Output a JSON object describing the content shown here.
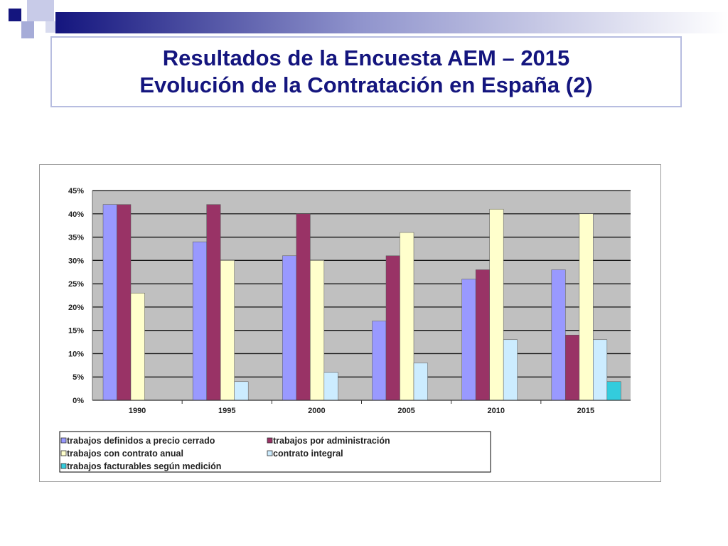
{
  "slide": {
    "title_line1": "Resultados de la Encuesta AEM – 2015",
    "title_line2": "Evolución de la Contratación en España (2)"
  },
  "colors": {
    "title": "#14157e",
    "plot_background": "#c0c0c0",
    "header_bar_gradient_start": "#14157e",
    "header_bar_gradient_end": "#ffffff"
  },
  "chart_data": {
    "type": "bar",
    "title": "",
    "xlabel": "",
    "ylabel": "",
    "categories": [
      "1990",
      "1995",
      "2000",
      "2005",
      "2010",
      "2015"
    ],
    "ylim": [
      0,
      45
    ],
    "yticks": [
      0,
      5,
      10,
      15,
      20,
      25,
      30,
      35,
      40,
      45
    ],
    "ytick_labels": [
      "0%",
      "5%",
      "10%",
      "15%",
      "20%",
      "25%",
      "30%",
      "35%",
      "40%",
      "45%"
    ],
    "grid": true,
    "legend_position": "bottom",
    "series": [
      {
        "name": "trabajos definidos  a precio cerrado",
        "color": "#9999ff",
        "values": [
          42,
          34,
          31,
          17,
          26,
          28
        ]
      },
      {
        "name": "trabajos por administración",
        "color": "#993366",
        "values": [
          42,
          42,
          40,
          31,
          28,
          14
        ]
      },
      {
        "name": "trabajos con contrato anual",
        "color": "#ffffcc",
        "values": [
          23,
          30,
          30,
          36,
          41,
          40
        ]
      },
      {
        "name": "contrato integral",
        "color": "#ccecff",
        "values": [
          0,
          4,
          6,
          8,
          13,
          13
        ]
      },
      {
        "name": "trabajos facturables según medición",
        "color": "#33ccdd",
        "values": [
          0,
          0,
          0,
          0,
          0,
          4
        ]
      }
    ]
  }
}
